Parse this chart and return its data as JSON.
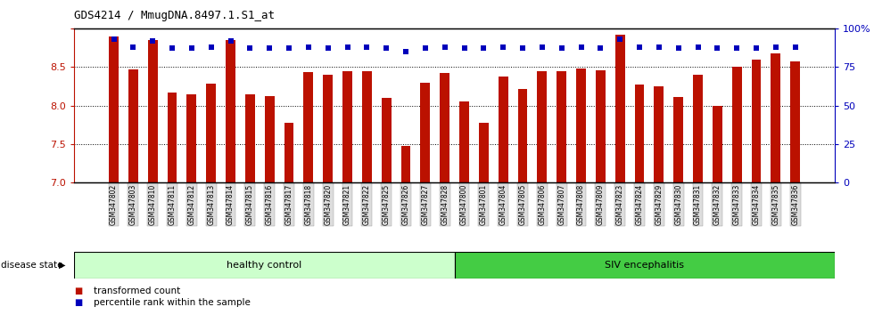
{
  "title": "GDS4214 / MmugDNA.8497.1.S1_at",
  "categories": [
    "GSM347802",
    "GSM347803",
    "GSM347810",
    "GSM347811",
    "GSM347812",
    "GSM347813",
    "GSM347814",
    "GSM347815",
    "GSM347816",
    "GSM347817",
    "GSM347818",
    "GSM347820",
    "GSM347821",
    "GSM347822",
    "GSM347825",
    "GSM347826",
    "GSM347827",
    "GSM347828",
    "GSM347800",
    "GSM347801",
    "GSM347804",
    "GSM347805",
    "GSM347806",
    "GSM347807",
    "GSM347808",
    "GSM347809",
    "GSM347823",
    "GSM347824",
    "GSM347829",
    "GSM347830",
    "GSM347831",
    "GSM347832",
    "GSM347833",
    "GSM347834",
    "GSM347835",
    "GSM347836"
  ],
  "red_values": [
    8.9,
    8.47,
    8.85,
    8.17,
    8.15,
    8.28,
    8.85,
    8.15,
    8.12,
    7.78,
    8.43,
    8.4,
    8.45,
    8.45,
    8.1,
    7.48,
    8.3,
    8.42,
    8.05,
    7.78,
    8.38,
    8.22,
    8.45,
    8.44,
    8.48,
    8.46,
    8.92,
    8.27,
    8.25,
    8.11,
    8.4,
    8.0,
    8.5,
    8.6,
    8.68,
    8.57
  ],
  "blue_values": [
    93,
    88,
    92,
    87,
    87,
    88,
    92,
    87,
    87,
    87,
    88,
    87,
    88,
    88,
    87,
    85,
    87,
    88,
    87,
    87,
    88,
    87,
    88,
    87,
    88,
    87,
    93,
    88,
    88,
    87,
    88,
    87,
    87,
    87,
    88,
    88
  ],
  "healthy_control_count": 18,
  "siv_count": 18,
  "ylim_left": [
    7.0,
    9.0
  ],
  "ylim_right": [
    0,
    100
  ],
  "yticks_left": [
    7.0,
    7.5,
    8.0,
    8.5,
    9.0
  ],
  "yticks_right": [
    0,
    25,
    50,
    75,
    100
  ],
  "ytick_labels_right": [
    "0",
    "25",
    "50",
    "75",
    "100%"
  ],
  "bar_color": "#bb1100",
  "dot_color": "#0000bb",
  "healthy_color": "#ccffcc",
  "siv_color": "#44cc44",
  "healthy_label": "healthy control",
  "siv_label": "SIV encephalitis",
  "disease_state_label": "disease state",
  "legend_red_label": "transformed count",
  "legend_blue_label": "percentile rank within the sample",
  "bar_width": 0.5,
  "grid_linestyle": ":",
  "grid_linewidth": 0.7
}
